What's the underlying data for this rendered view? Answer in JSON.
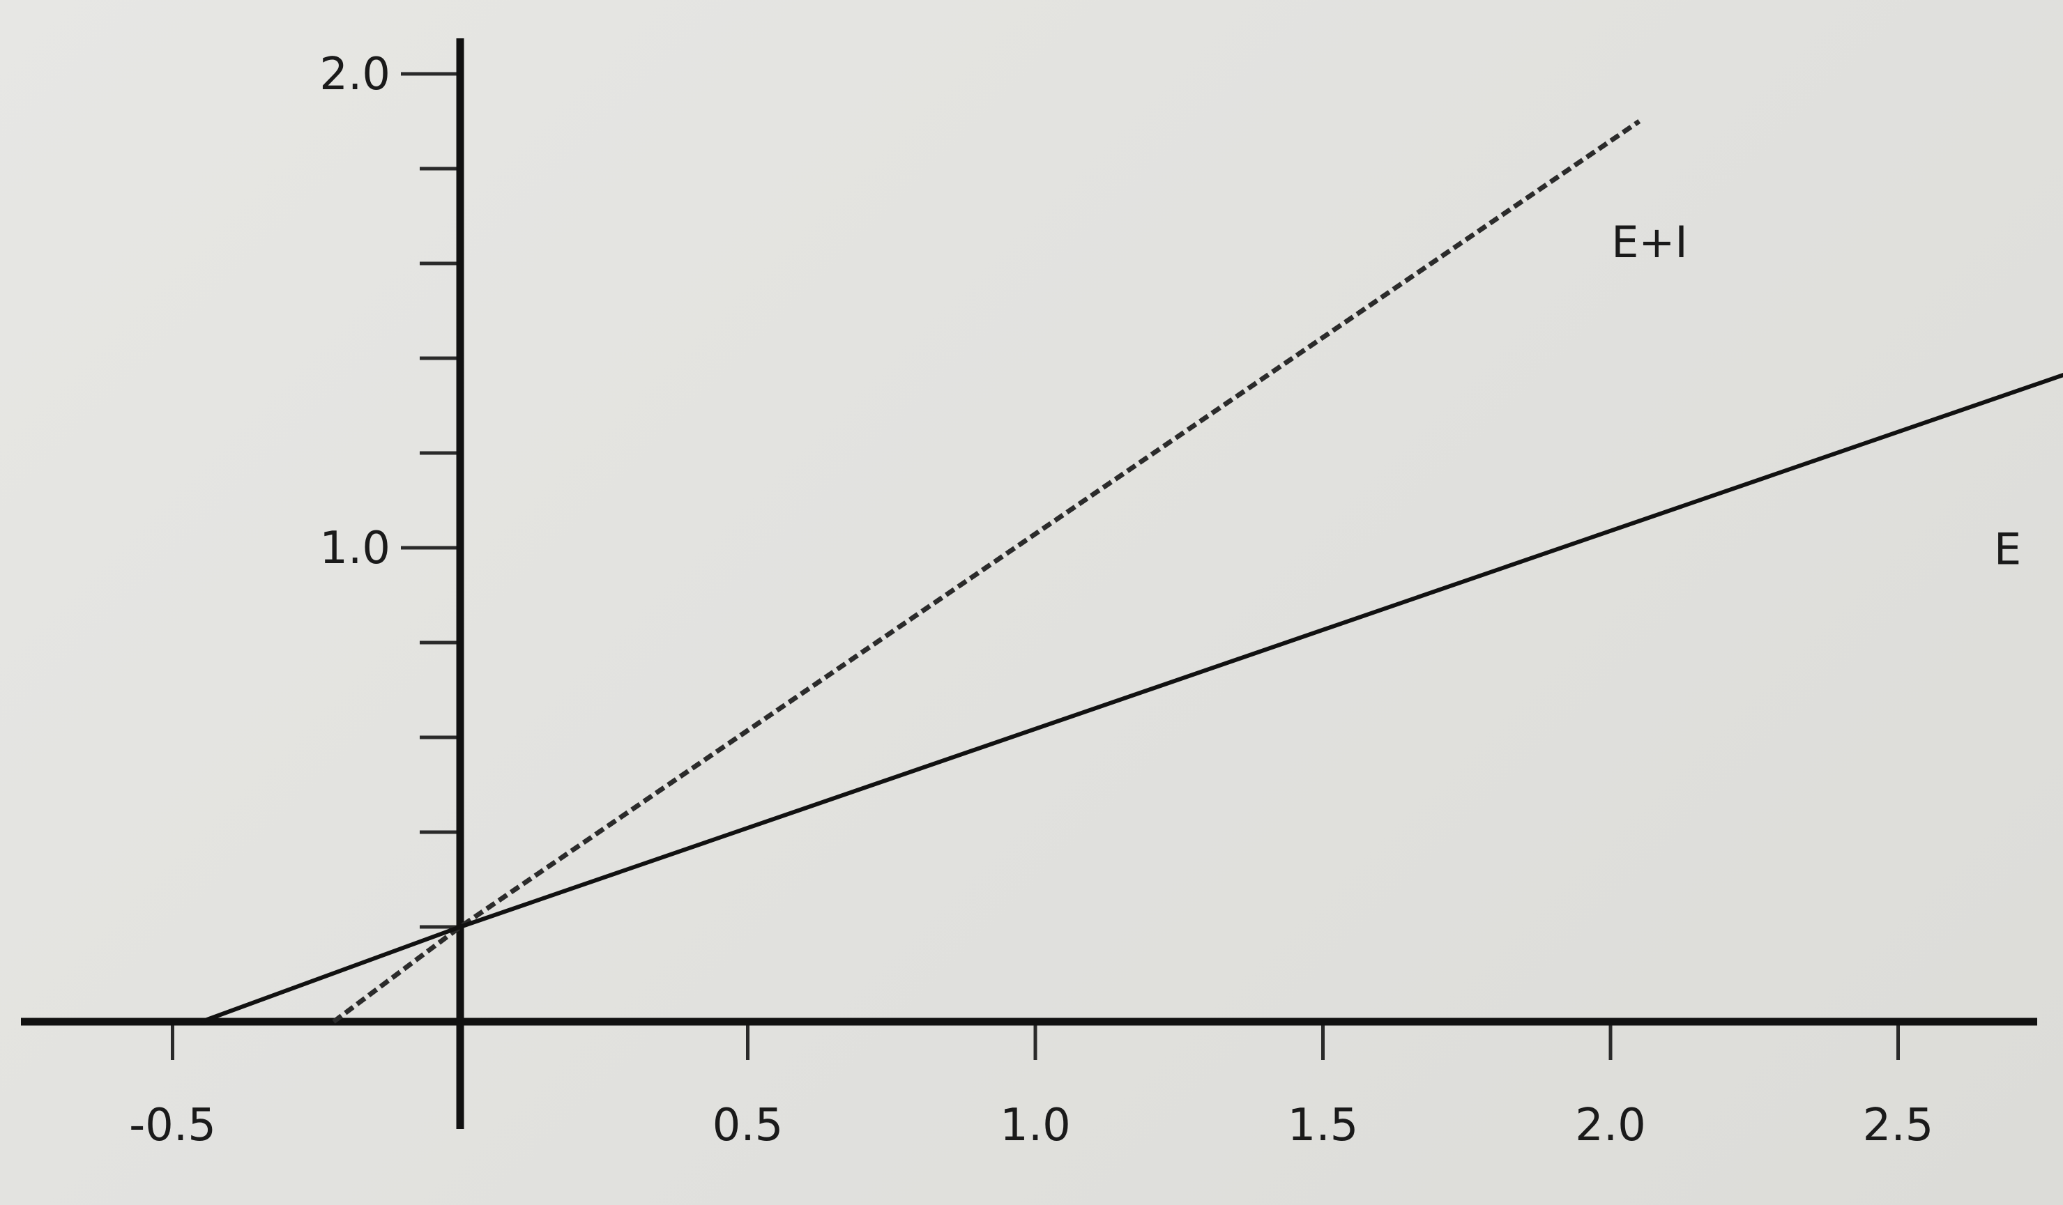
{
  "chart_data": {
    "type": "line",
    "title": "",
    "xlabel": "",
    "ylabel": "",
    "xlim": [
      -0.5,
      2.8
    ],
    "ylim": [
      0,
      2.0
    ],
    "x_ticks": [
      {
        "value": -0.5,
        "label": "-0.5"
      },
      {
        "value": 0.5,
        "label": "0.5"
      },
      {
        "value": 1.0,
        "label": "1.0"
      },
      {
        "value": 1.5,
        "label": "1.5"
      },
      {
        "value": 2.0,
        "label": "2.0"
      },
      {
        "value": 2.5,
        "label": "2.5"
      }
    ],
    "y_major_ticks": [
      {
        "value": 1.0,
        "label": "1.0"
      },
      {
        "value": 2.0,
        "label": "2.0"
      }
    ],
    "y_minor_ticks": [
      0.2,
      0.4,
      0.6,
      0.8,
      1.2,
      1.4,
      1.6,
      1.8
    ],
    "grid": false,
    "legend": "none",
    "series": [
      {
        "name": "E+I",
        "style": "dashed",
        "color": "#2b2b2b",
        "x": [
          -0.22,
          0.0,
          2.05
        ],
        "y": [
          0.0,
          0.2,
          1.9
        ]
      },
      {
        "name": "E",
        "style": "solid",
        "color": "#111111",
        "x": [
          -0.45,
          0.0,
          2.8
        ],
        "y": [
          0.0,
          0.2,
          1.37
        ]
      }
    ]
  }
}
